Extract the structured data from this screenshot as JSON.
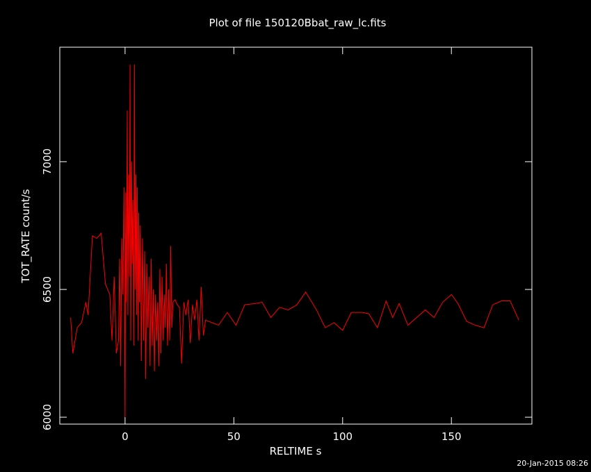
{
  "chart_data": {
    "type": "line",
    "title": "Plot of file 150120Bbat_raw_lc.fits",
    "x_label": "RELTIME  s",
    "y_label": "TOT_RATE  count/s",
    "timestamp": "20-Jan-2015 08:26",
    "x": [
      -25,
      -24,
      -22,
      -20,
      -18,
      -17,
      -15,
      -13,
      -11,
      -9,
      -7,
      -6,
      -5,
      -4,
      -3,
      -2.5,
      -2,
      -1.5,
      -1,
      -0.5,
      0,
      0.3,
      0.6,
      1,
      1.3,
      1.6,
      2,
      2.3,
      2.6,
      3,
      3.3,
      3.6,
      4,
      4.3,
      4.6,
      5,
      5.3,
      5.6,
      6,
      6.3,
      6.6,
      7,
      7.5,
      8,
      8.5,
      9,
      9.5,
      10,
      10.5,
      11,
      11.5,
      12,
      12.5,
      13,
      13.5,
      14,
      14.5,
      15,
      15.5,
      16,
      16.5,
      17,
      17.5,
      18,
      18.5,
      19,
      19.5,
      20,
      20.5,
      21,
      21.5,
      22,
      23,
      24,
      25,
      26,
      27,
      28,
      29,
      30,
      31,
      32,
      33,
      34,
      35,
      36,
      37,
      40,
      43,
      47,
      51,
      55,
      60,
      63,
      67,
      71,
      75,
      79,
      83,
      88,
      92,
      96,
      100,
      104,
      109,
      112,
      116,
      120,
      123,
      126,
      130,
      134,
      138,
      142,
      146,
      150,
      153,
      157,
      161,
      165,
      169,
      173,
      177,
      181
    ],
    "series": [
      {
        "name": "TOT_RATE",
        "color": "#ff0000",
        "values": [
          6390,
          6250,
          6350,
          6370,
          6450,
          6400,
          6710,
          6700,
          6720,
          6520,
          6480,
          6300,
          6550,
          6250,
          6300,
          6620,
          6200,
          6700,
          6480,
          6900,
          6000,
          6880,
          6450,
          7200,
          6400,
          6950,
          6550,
          7380,
          6300,
          7000,
          6600,
          6850,
          6280,
          7380,
          6500,
          6950,
          6400,
          6900,
          6300,
          6800,
          6450,
          6750,
          6220,
          6700,
          6300,
          6650,
          6150,
          6600,
          6350,
          6550,
          6200,
          6620,
          6280,
          6500,
          6180,
          6480,
          6300,
          6450,
          6200,
          6580,
          6250,
          6550,
          6300,
          6480,
          6350,
          6600,
          6280,
          6500,
          6300,
          6670,
          6350,
          6450,
          6460,
          6440,
          6430,
          6210,
          6450,
          6400,
          6460,
          6290,
          6440,
          6380,
          6460,
          6300,
          6510,
          6320,
          6380,
          6370,
          6360,
          6410,
          6360,
          6440,
          6445,
          6450,
          6390,
          6430,
          6420,
          6440,
          6490,
          6420,
          6350,
          6370,
          6340,
          6410,
          6410,
          6405,
          6350,
          6455,
          6390,
          6445,
          6360,
          6390,
          6420,
          6390,
          6450,
          6480,
          6445,
          6375,
          6360,
          6350,
          6440,
          6455,
          6455,
          6380
        ]
      }
    ],
    "xlim": [
      -30,
      187
    ],
    "ylim": [
      5973,
      7448
    ],
    "xticks": [
      0,
      50,
      100,
      150
    ],
    "yticks": [
      6000,
      6500,
      7000
    ],
    "grid": false
  }
}
